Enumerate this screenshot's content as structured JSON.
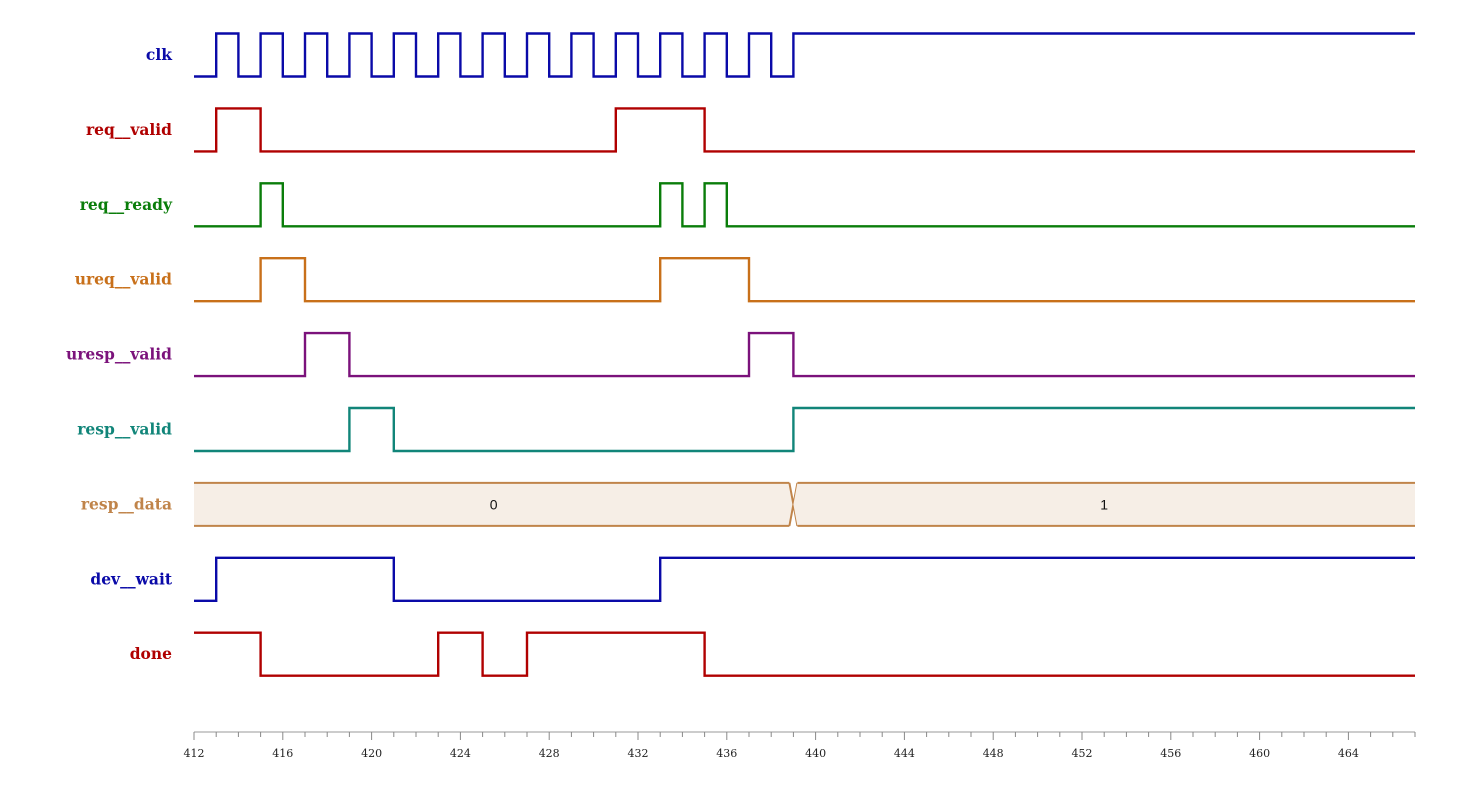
{
  "chart_data": {
    "type": "timing",
    "x_range": [
      412,
      467
    ],
    "x_ticks": [
      412,
      416,
      420,
      424,
      428,
      432,
      436,
      440,
      444,
      448,
      452,
      456,
      460,
      464
    ],
    "signals": [
      {
        "name": "clk",
        "color": "#0a0aa8",
        "kind": "clock",
        "period": 2,
        "start": 412,
        "stop": 439,
        "end_level": 1
      },
      {
        "name": "req__valid",
        "color": "#b00000",
        "kind": "bit",
        "init": 0,
        "transitions": [
          413,
          415,
          431,
          435
        ]
      },
      {
        "name": "req__ready",
        "color": "#0a7d0a",
        "kind": "bit",
        "init": 0,
        "transitions": [
          415,
          416,
          433,
          434,
          435,
          436
        ]
      },
      {
        "name": "ureq__valid",
        "color": "#c8701a",
        "kind": "bit",
        "init": 0,
        "transitions": [
          415,
          417,
          433,
          437
        ]
      },
      {
        "name": "uresp__valid",
        "color": "#7b127b",
        "kind": "bit",
        "init": 0,
        "transitions": [
          417,
          419,
          437,
          439
        ]
      },
      {
        "name": "resp__valid",
        "color": "#118579",
        "kind": "bit",
        "init": 0,
        "transitions": [
          419,
          421,
          439
        ]
      },
      {
        "name": "resp__data",
        "color": "#c0844a",
        "fill": "#f6eee6",
        "kind": "bus",
        "segments": [
          {
            "from": 412,
            "to": 439,
            "value": "0"
          },
          {
            "from": 439,
            "to": 467,
            "value": "1"
          }
        ]
      },
      {
        "name": "dev__wait",
        "color": "#0a0aa8",
        "kind": "bit",
        "init": 0,
        "transitions": [
          413,
          421,
          433
        ]
      },
      {
        "name": "done",
        "color": "#b00000",
        "kind": "bit",
        "init": 1,
        "transitions": [
          415,
          423,
          425,
          427,
          435
        ]
      }
    ]
  }
}
